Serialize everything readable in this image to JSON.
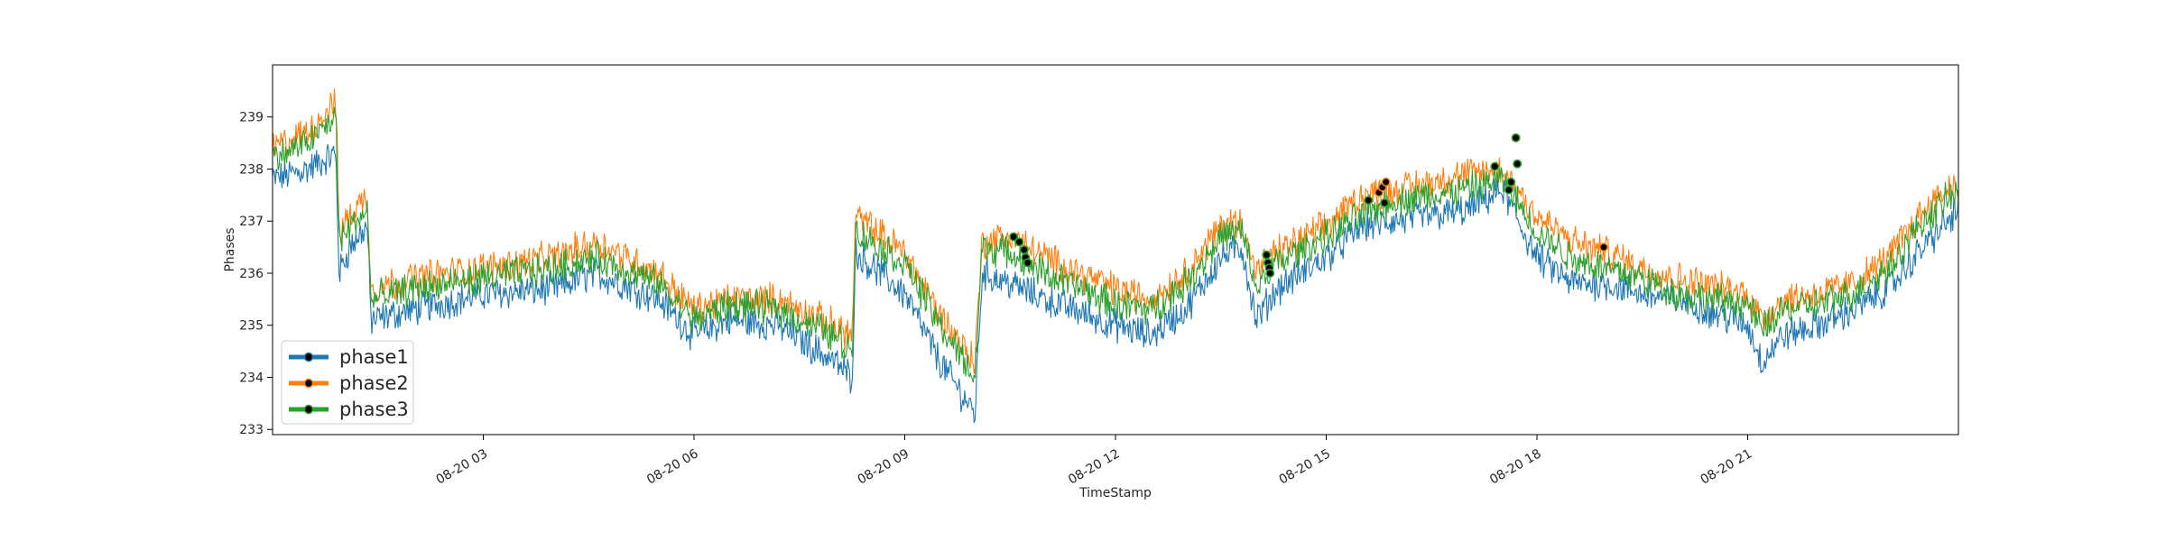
{
  "chart_data": {
    "type": "line",
    "title": "",
    "xlabel": "TimeStamp",
    "ylabel": "Phases",
    "xlim": [
      "08-20 00:00",
      "23:59"
    ],
    "ylim": [
      232.9,
      240.0
    ],
    "x_tick_labels": [
      "08-20 03",
      "08-20 06",
      "08-20 09",
      "08-20 12",
      "08-20 15",
      "08-20 18",
      "08-20 21"
    ],
    "x_ticks_hours": [
      3,
      6,
      9,
      12,
      15,
      18,
      21
    ],
    "y_ticks": [
      233,
      234,
      235,
      236,
      237,
      238,
      239
    ],
    "grid": false,
    "legend_position": "lower-left",
    "series": [
      {
        "name": "phase1",
        "color": "#1f77b4",
        "x_hours": [
          0,
          0.5,
          0.9,
          0.95,
          1.1,
          1.35,
          1.4,
          2,
          3,
          4,
          4.6,
          5.5,
          6,
          6.5,
          7.2,
          8,
          8.25,
          8.3,
          9,
          9.5,
          10,
          10.1,
          10.5,
          11,
          12,
          12.5,
          13,
          13.5,
          13.8,
          14,
          14.3,
          15,
          15.5,
          16,
          17,
          17.5,
          18,
          18.5,
          19,
          19.5,
          20,
          21,
          21.2,
          21.5,
          22,
          22.5,
          23,
          23.5,
          24
        ],
        "values": [
          237.8,
          238.0,
          238.3,
          236.0,
          236.5,
          236.9,
          235.1,
          235.3,
          235.6,
          235.7,
          236.0,
          235.5,
          234.8,
          235.1,
          235.0,
          234.3,
          234.0,
          236.4,
          235.6,
          234.3,
          233.3,
          236.0,
          235.8,
          235.5,
          235.0,
          234.8,
          235.3,
          236.3,
          236.5,
          235.1,
          235.7,
          236.3,
          236.9,
          237.0,
          237.2,
          237.6,
          236.3,
          235.8,
          235.8,
          235.6,
          235.5,
          235.0,
          234.3,
          234.8,
          235.0,
          235.3,
          235.7,
          236.5,
          237.2
        ]
      },
      {
        "name": "phase2",
        "color": "#ff7f0e",
        "x_hours": [
          0,
          0.5,
          0.9,
          0.95,
          1.1,
          1.35,
          1.4,
          2,
          3,
          4,
          4.6,
          5.5,
          6,
          6.5,
          7.2,
          8,
          8.25,
          8.3,
          9,
          9.5,
          10,
          10.1,
          10.5,
          11,
          12,
          12.5,
          13,
          13.5,
          13.8,
          14,
          14.3,
          15,
          15.5,
          16,
          17,
          17.5,
          18,
          18.5,
          19,
          19.5,
          20,
          21,
          21.2,
          21.5,
          22,
          22.5,
          23,
          23.5,
          24
        ],
        "values": [
          238.4,
          238.7,
          239.3,
          236.8,
          237.1,
          237.5,
          235.7,
          235.9,
          236.1,
          236.3,
          236.6,
          236.0,
          235.3,
          235.5,
          235.5,
          235.0,
          234.8,
          237.1,
          236.4,
          235.2,
          234.3,
          236.6,
          236.7,
          236.3,
          235.7,
          235.5,
          236.0,
          236.9,
          237.0,
          236.0,
          236.4,
          236.9,
          237.5,
          237.6,
          237.9,
          238.0,
          237.1,
          236.6,
          236.4,
          236.1,
          235.9,
          235.6,
          235.1,
          235.5,
          235.6,
          235.8,
          236.3,
          237.2,
          237.8
        ]
      },
      {
        "name": "phase3",
        "color": "#2ca02c",
        "x_hours": [
          0,
          0.5,
          0.9,
          0.95,
          1.1,
          1.35,
          1.4,
          2,
          3,
          4,
          4.6,
          5.5,
          6,
          6.5,
          7.2,
          8,
          8.25,
          8.3,
          9,
          9.5,
          10,
          10.1,
          10.5,
          11,
          12,
          12.5,
          13,
          13.5,
          13.8,
          14,
          14.3,
          15,
          15.5,
          16,
          17,
          17.5,
          18,
          18.5,
          19,
          19.5,
          20,
          21,
          21.2,
          21.5,
          22,
          22.5,
          23,
          23.5,
          24
        ],
        "values": [
          238.2,
          238.5,
          239.0,
          236.6,
          236.9,
          237.2,
          235.5,
          235.7,
          235.9,
          236.1,
          236.3,
          235.8,
          235.1,
          235.4,
          235.3,
          234.8,
          234.5,
          236.8,
          236.2,
          235.0,
          234.0,
          236.5,
          236.4,
          236.0,
          235.4,
          235.3,
          235.8,
          236.7,
          236.8,
          235.7,
          236.2,
          236.7,
          237.1,
          237.4,
          237.6,
          237.8,
          236.8,
          236.3,
          236.1,
          235.9,
          235.6,
          235.4,
          234.9,
          235.3,
          235.4,
          235.6,
          236.1,
          237.0,
          237.6
        ]
      }
    ],
    "anomalies": {
      "marker_color": "#000000",
      "points": [
        {
          "series": "phase3",
          "x_hours": 10.55,
          "value": 236.7
        },
        {
          "series": "phase3",
          "x_hours": 10.63,
          "value": 236.6
        },
        {
          "series": "phase3",
          "x_hours": 10.7,
          "value": 236.45
        },
        {
          "series": "phase3",
          "x_hours": 10.72,
          "value": 236.3
        },
        {
          "series": "phase3",
          "x_hours": 10.75,
          "value": 236.2
        },
        {
          "series": "phase3",
          "x_hours": 14.15,
          "value": 236.35
        },
        {
          "series": "phase3",
          "x_hours": 14.17,
          "value": 236.2
        },
        {
          "series": "phase3",
          "x_hours": 14.19,
          "value": 236.1
        },
        {
          "series": "phase3",
          "x_hours": 14.2,
          "value": 236.0
        },
        {
          "series": "phase3",
          "x_hours": 15.6,
          "value": 237.4
        },
        {
          "series": "phase2",
          "x_hours": 15.75,
          "value": 237.55
        },
        {
          "series": "phase2",
          "x_hours": 15.8,
          "value": 237.65
        },
        {
          "series": "phase2",
          "x_hours": 15.85,
          "value": 237.75
        },
        {
          "series": "phase3",
          "x_hours": 15.83,
          "value": 237.35
        },
        {
          "series": "phase3",
          "x_hours": 17.4,
          "value": 238.05
        },
        {
          "series": "phase3",
          "x_hours": 17.6,
          "value": 237.6
        },
        {
          "series": "phase3",
          "x_hours": 17.63,
          "value": 237.75
        },
        {
          "series": "phase3",
          "x_hours": 17.7,
          "value": 238.6
        },
        {
          "series": "phase3",
          "x_hours": 17.72,
          "value": 238.1
        },
        {
          "series": "phase2",
          "x_hours": 18.95,
          "value": 236.5
        }
      ]
    }
  }
}
